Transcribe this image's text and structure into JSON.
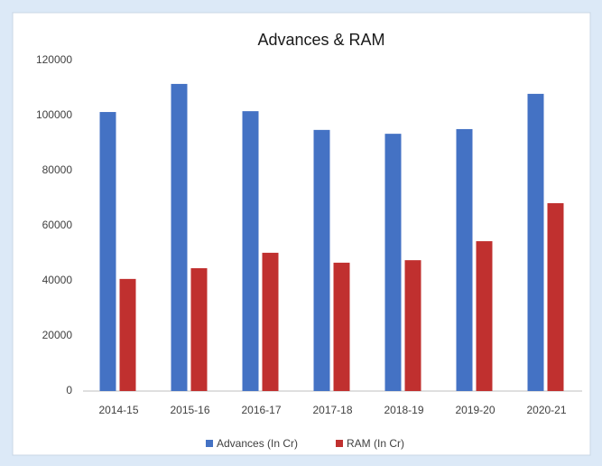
{
  "chart_data": {
    "type": "bar",
    "title": "Advances & RAM",
    "categories": [
      "2014-15",
      "2015-16",
      "2016-17",
      "2017-18",
      "2018-19",
      "2019-20",
      "2020-21"
    ],
    "series": [
      {
        "name": "Advances (In Cr)",
        "color": "#4472c4",
        "values": [
          101300,
          111500,
          101600,
          94800,
          93400,
          95100,
          107900
        ]
      },
      {
        "name": "RAM (In Cr)",
        "color": "#c0302f",
        "values": [
          40700,
          44600,
          50200,
          46600,
          47500,
          54400,
          68200
        ]
      }
    ],
    "ylim": [
      0,
      120000
    ],
    "yticks": [
      0,
      20000,
      40000,
      60000,
      80000,
      100000,
      120000
    ],
    "grid": false,
    "legend": "bottom"
  }
}
